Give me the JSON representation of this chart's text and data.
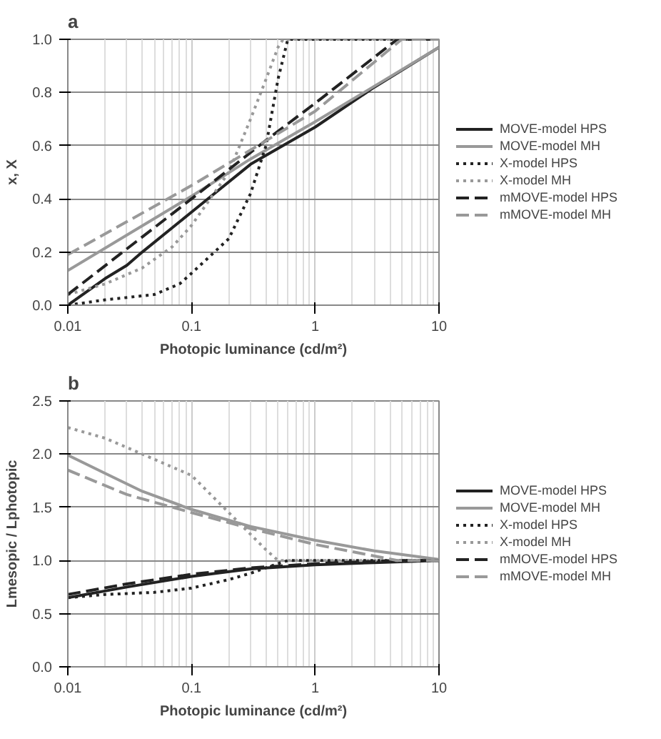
{
  "chart_data": [
    {
      "type": "line",
      "title": "a",
      "xlabel": "Photopic luminance (cd/m²)",
      "ylabel": "x, X",
      "log": "x",
      "grid": true,
      "legend": "right",
      "xlim": [
        0.01,
        10
      ],
      "xticks": [
        0.01,
        0.1,
        1,
        10
      ],
      "ylim": [
        0,
        1
      ],
      "yticks": [
        {
          "value": 0,
          "label": "0.0"
        },
        0.2,
        0.4,
        0.6,
        0.8,
        {
          "value": 1,
          "label": "1.0"
        }
      ],
      "series": [
        {
          "name": "MOVE-model HPS",
          "color": "#222222",
          "line_style": "solid",
          "x": [
            0.01,
            0.02,
            0.03,
            0.04,
            0.1,
            0.3,
            1,
            3,
            10
          ],
          "values": [
            0.0,
            0.1,
            0.15,
            0.2,
            0.35,
            0.53,
            0.67,
            0.82,
            0.97
          ]
        },
        {
          "name": "MOVE-model MH",
          "color": "#999999",
          "line_style": "solid",
          "x": [
            0.01,
            0.1,
            0.3,
            1,
            10
          ],
          "values": [
            0.13,
            0.41,
            0.55,
            0.69,
            0.97
          ]
        },
        {
          "name": "X-model HPS",
          "color": "#222222",
          "line_style": "dotted",
          "x": [
            0.01,
            0.02,
            0.05,
            0.08,
            0.1,
            0.2,
            0.3,
            0.4,
            0.5,
            0.6,
            10
          ],
          "values": [
            0.0,
            0.02,
            0.04,
            0.08,
            0.12,
            0.25,
            0.42,
            0.6,
            0.85,
            1.0,
            1.0
          ]
        },
        {
          "name": "X-model MH",
          "color": "#999999",
          "line_style": "dotted",
          "x": [
            0.01,
            0.02,
            0.04,
            0.07,
            0.1,
            0.2,
            0.3,
            0.4,
            0.5,
            0.55,
            10
          ],
          "values": [
            0.04,
            0.08,
            0.14,
            0.22,
            0.3,
            0.5,
            0.7,
            0.85,
            0.97,
            1.0,
            1.0
          ]
        },
        {
          "name": "mMOVE-model HPS",
          "color": "#222222",
          "line_style": "dashed",
          "x": [
            0.01,
            0.1,
            0.4,
            1,
            4.6,
            10
          ],
          "values": [
            0.04,
            0.4,
            0.62,
            0.76,
            1.0,
            1.0
          ]
        },
        {
          "name": "mMOVE-model MH",
          "color": "#999999",
          "line_style": "dashed",
          "x": [
            0.01,
            0.1,
            1,
            5,
            10
          ],
          "values": [
            0.19,
            0.45,
            0.73,
            1.0,
            1.0
          ]
        }
      ]
    },
    {
      "type": "line",
      "title": "b",
      "xlabel": "Photopic luminance (cd/m²)",
      "ylabel": "Lmesopic / Lphotopic",
      "log": "x",
      "grid": true,
      "legend": "right",
      "xlim": [
        0.01,
        10
      ],
      "xticks": [
        0.01,
        0.1,
        1,
        10
      ],
      "ylim": [
        0,
        2.5
      ],
      "yticks": [
        {
          "value": 0,
          "label": "0.0"
        },
        0.5,
        {
          "value": 1,
          "label": "1.0"
        },
        1.5,
        {
          "value": 2,
          "label": "2.0"
        },
        2.5
      ],
      "series": [
        {
          "name": "MOVE-model HPS",
          "color": "#222222",
          "line_style": "solid",
          "x": [
            0.01,
            0.03,
            0.1,
            0.3,
            1,
            3,
            10
          ],
          "values": [
            0.65,
            0.75,
            0.85,
            0.92,
            0.96,
            0.98,
            1.0
          ]
        },
        {
          "name": "MOVE-model MH",
          "color": "#999999",
          "line_style": "solid",
          "x": [
            0.01,
            0.02,
            0.04,
            0.1,
            0.3,
            1,
            3,
            10
          ],
          "values": [
            1.99,
            1.82,
            1.65,
            1.48,
            1.32,
            1.19,
            1.09,
            1.01
          ]
        },
        {
          "name": "X-model HPS",
          "color": "#222222",
          "line_style": "dotted",
          "x": [
            0.01,
            0.02,
            0.05,
            0.1,
            0.2,
            0.3,
            0.5,
            0.6,
            10
          ],
          "values": [
            0.65,
            0.68,
            0.7,
            0.74,
            0.82,
            0.88,
            0.97,
            1.0,
            1.0
          ]
        },
        {
          "name": "X-model MH",
          "color": "#999999",
          "line_style": "dotted",
          "x": [
            0.01,
            0.02,
            0.04,
            0.1,
            0.2,
            0.4,
            0.5,
            10
          ],
          "values": [
            2.25,
            2.15,
            2.0,
            1.8,
            1.45,
            1.1,
            1.0,
            1.0
          ]
        },
        {
          "name": "mMOVE-model HPS",
          "color": "#222222",
          "line_style": "dashed",
          "x": [
            0.01,
            0.03,
            0.1,
            0.3,
            1,
            4.6,
            10
          ],
          "values": [
            0.68,
            0.78,
            0.87,
            0.93,
            0.97,
            1.0,
            1.0
          ]
        },
        {
          "name": "mMOVE-model MH",
          "color": "#999999",
          "line_style": "dashed",
          "x": [
            0.01,
            0.03,
            0.1,
            0.3,
            1,
            4.6,
            10
          ],
          "values": [
            1.85,
            1.62,
            1.45,
            1.3,
            1.15,
            1.0,
            1.0
          ]
        }
      ]
    }
  ]
}
